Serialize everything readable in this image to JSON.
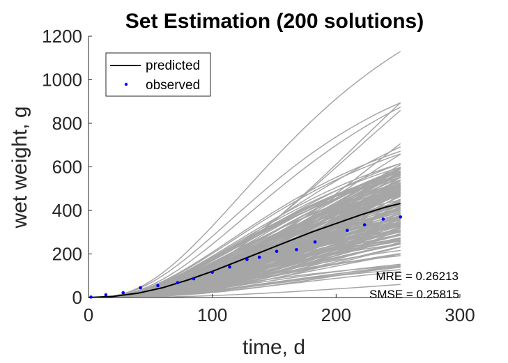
{
  "chart_data": {
    "type": "line",
    "title": "Set Estimation (200 solutions)",
    "xlabel": "time, d",
    "ylabel": "wet weight, g",
    "xlim": [
      0,
      300
    ],
    "ylim": [
      0,
      1200
    ],
    "xticks": [
      0,
      100,
      200,
      300
    ],
    "yticks": [
      0,
      200,
      400,
      600,
      800,
      1000,
      1200
    ],
    "grid": false,
    "legend_position": "top-left",
    "legend": [
      {
        "label": "predicted",
        "marker": "line",
        "color": "#000000"
      },
      {
        "label": "observed",
        "marker": "dot",
        "color": "#0000ff"
      }
    ],
    "ensemble": {
      "count": 200,
      "color": "#a6a6a6",
      "x_end": 252,
      "min_final": 60,
      "max_final": 1130
    },
    "series": [
      {
        "name": "predicted",
        "color": "#000000",
        "x": [
          0,
          20,
          40,
          60,
          80,
          100,
          120,
          140,
          160,
          180,
          200,
          220,
          240,
          252
        ],
        "y": [
          0,
          5,
          20,
          45,
          80,
          120,
          165,
          210,
          255,
          300,
          340,
          380,
          415,
          432
        ]
      },
      {
        "name": "observed",
        "color": "#0000ff",
        "x": [
          2,
          14,
          28,
          42,
          56,
          72,
          85,
          100,
          114,
          128,
          138,
          152,
          168,
          183,
          209,
          223,
          238,
          252
        ],
        "y": [
          2,
          12,
          22,
          45,
          55,
          68,
          86,
          116,
          140,
          175,
          185,
          212,
          220,
          255,
          308,
          334,
          360,
          370
        ]
      }
    ],
    "annotations": [
      "MRE = 0.26213",
      "SMSE = 0.25815"
    ]
  }
}
